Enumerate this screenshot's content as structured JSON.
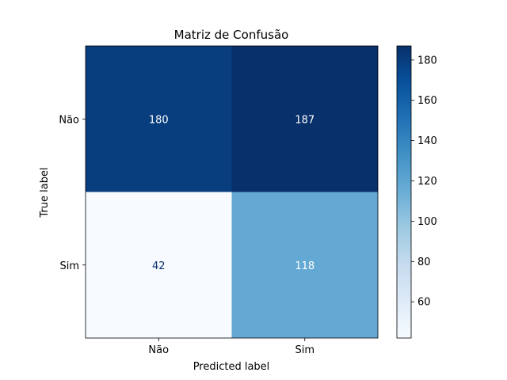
{
  "chart_data": {
    "type": "heatmap",
    "title": "Matriz de Confusão",
    "xlabel": "Predicted label",
    "ylabel": "True label",
    "x_categories": [
      "Não",
      "Sim"
    ],
    "y_categories": [
      "Não",
      "Sim"
    ],
    "matrix": [
      [
        180,
        187
      ],
      [
        42,
        118
      ]
    ],
    "colormap": "Blues",
    "colorbar": {
      "min": 42,
      "max": 187,
      "ticks": [
        60,
        80,
        100,
        120,
        140,
        160,
        180
      ]
    },
    "colors": {
      "low": "#f7fbff",
      "high": "#08306b",
      "text_light": "#ffffff",
      "text_dark": "#08306b"
    }
  }
}
